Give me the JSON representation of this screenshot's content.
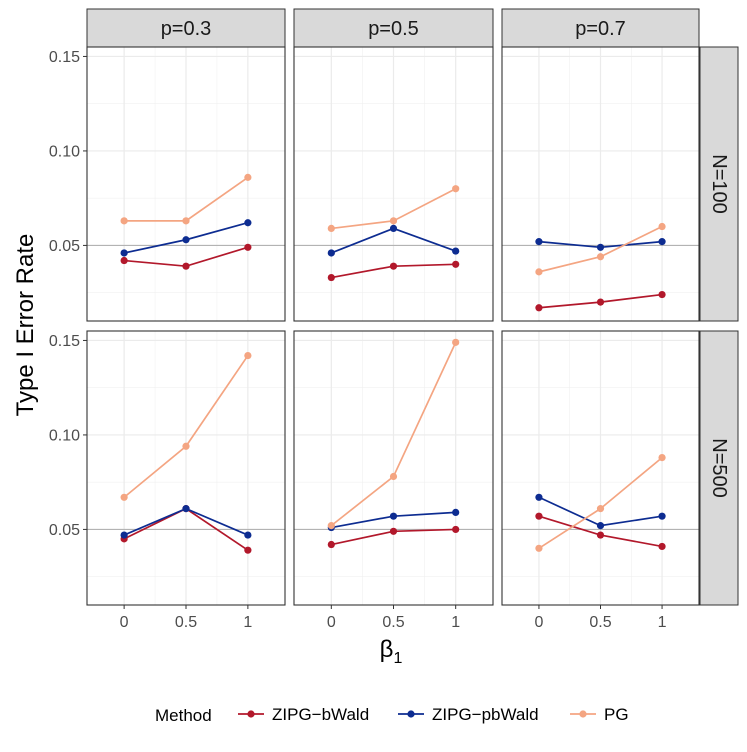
{
  "chart_data": {
    "type": "line",
    "ylabel": "Type I Error Rate",
    "xlabel": "β1",
    "x": [
      0,
      0.5,
      1
    ],
    "x_tick_labels": [
      "0",
      "0.5",
      "1"
    ],
    "xlim": [
      -0.3,
      1.3
    ],
    "ylim": [
      0.01,
      0.155
    ],
    "y_ticks": [
      0.05,
      0.1,
      0.15
    ],
    "y_tick_labels": [
      "0.05",
      "0.10",
      "0.15"
    ],
    "reference_line": 0.05,
    "columns": [
      "p=0.3",
      "p=0.5",
      "p=0.7"
    ],
    "rows": [
      "N=100",
      "N=500"
    ],
    "legend": {
      "title": "Method",
      "position": "bottom",
      "items": [
        "ZIPG−bWald",
        "ZIPG−pbWald",
        "PG"
      ]
    },
    "series": [
      {
        "name": "ZIPG−bWald",
        "color": "#B2182B"
      },
      {
        "name": "ZIPG−pbWald",
        "color": "#0D2C91"
      },
      {
        "name": "PG",
        "color": "#F4A582"
      }
    ],
    "panels": [
      {
        "row": "N=100",
        "col": "p=0.3",
        "values": {
          "ZIPG−bWald": [
            0.042,
            0.039,
            0.049
          ],
          "ZIPG−pbWald": [
            0.046,
            0.053,
            0.062
          ],
          "PG": [
            0.063,
            0.063,
            0.086
          ]
        }
      },
      {
        "row": "N=100",
        "col": "p=0.5",
        "values": {
          "ZIPG−bWald": [
            0.033,
            0.039,
            0.04
          ],
          "ZIPG−pbWald": [
            0.046,
            0.059,
            0.047
          ],
          "PG": [
            0.059,
            0.063,
            0.08
          ]
        }
      },
      {
        "row": "N=100",
        "col": "p=0.7",
        "values": {
          "ZIPG−bWald": [
            0.017,
            0.02,
            0.024
          ],
          "ZIPG−pbWald": [
            0.052,
            0.049,
            0.052
          ],
          "PG": [
            0.036,
            0.044,
            0.06
          ]
        }
      },
      {
        "row": "N=500",
        "col": "p=0.3",
        "values": {
          "ZIPG−bWald": [
            0.045,
            0.061,
            0.039
          ],
          "ZIPG−pbWald": [
            0.047,
            0.061,
            0.047
          ],
          "PG": [
            0.067,
            0.094,
            0.142
          ]
        }
      },
      {
        "row": "N=500",
        "col": "p=0.5",
        "values": {
          "ZIPG−bWald": [
            0.042,
            0.049,
            0.05
          ],
          "ZIPG−pbWald": [
            0.051,
            0.057,
            0.059
          ],
          "PG": [
            0.052,
            0.078,
            0.149
          ]
        }
      },
      {
        "row": "N=500",
        "col": "p=0.7",
        "values": {
          "ZIPG−bWald": [
            0.057,
            0.047,
            0.041
          ],
          "ZIPG−pbWald": [
            0.067,
            0.052,
            0.057
          ],
          "PG": [
            0.04,
            0.061,
            0.088
          ]
        }
      }
    ]
  }
}
